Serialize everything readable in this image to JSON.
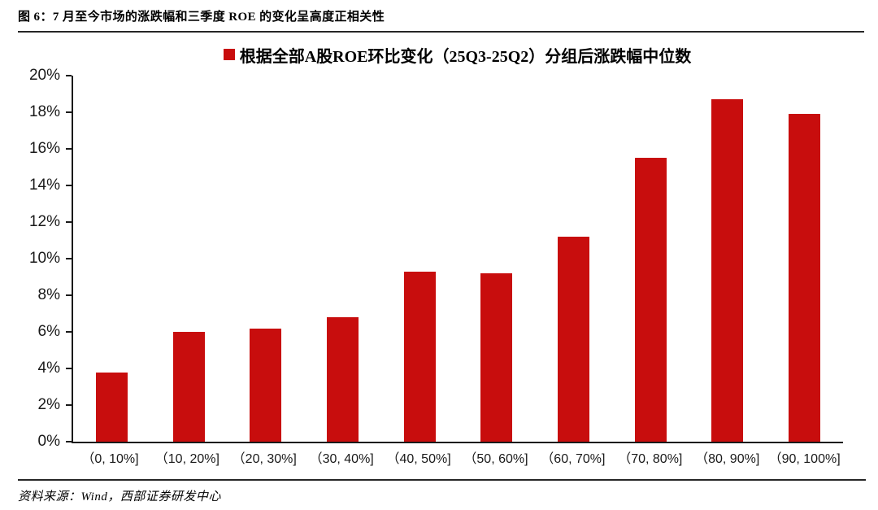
{
  "figure": {
    "title": "图 6：7 月至今市场的涨跌幅和三季度 ROE 的变化呈高度正相关性",
    "source_note": "资料来源：Wind，西部证券研发中心"
  },
  "chart_data": {
    "type": "bar",
    "title": "图 6：7 月至今市场的涨跌幅和三季度 ROE 的变化呈高度正相关性",
    "legend": [
      {
        "label": "根据全部A股ROE环比变化（25Q3-25Q2）分组后涨跌幅中位数",
        "color": "#C80D0D"
      }
    ],
    "legend_position": "top-center",
    "categories": [
      "（0, 10%]",
      "（10, 20%]",
      "（20, 30%]",
      "（30, 40%]",
      "（40, 50%]",
      "（50, 60%]",
      "（60, 70%]",
      "（70, 80%]",
      "（80, 90%]",
      "（90, 100%]"
    ],
    "series": [
      {
        "name": "根据全部A股ROE环比变化（25Q3-25Q2）分组后涨跌幅中位数",
        "values": [
          3.8,
          6.0,
          6.2,
          6.8,
          9.3,
          9.2,
          11.2,
          15.5,
          18.7,
          17.9
        ]
      }
    ],
    "xlabel": "",
    "ylabel": "",
    "ylim": [
      0,
      20
    ],
    "ytick_step": 2,
    "ytick_labels": [
      "20%",
      "18%",
      "16%",
      "14%",
      "12%",
      "10%",
      "8%",
      "6%",
      "4%",
      "2%",
      "0%"
    ],
    "grid": false,
    "bar_color": "#C80D0D",
    "axis_color": "#1a1a1a"
  }
}
